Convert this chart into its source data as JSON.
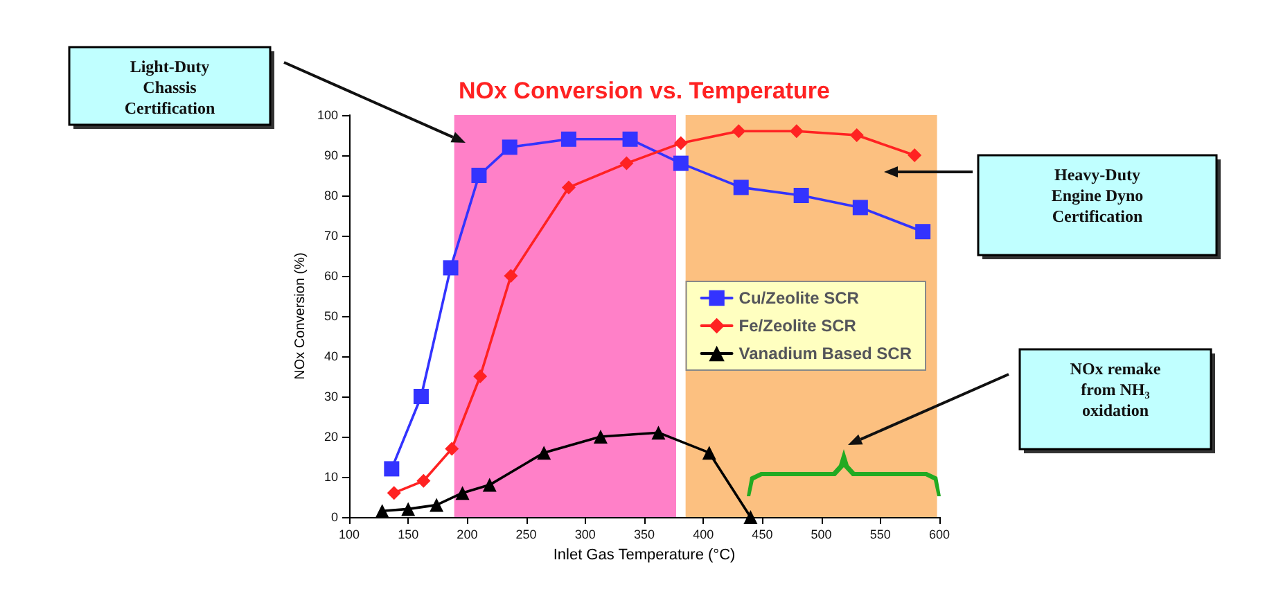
{
  "chart_data": {
    "type": "line",
    "title": "NOx Conversion vs. Temperature",
    "xlabel": "Inlet Gas Temperature (°C)",
    "ylabel": "NOx Conversion (%)",
    "series": [
      {
        "name": "Cu/Zeolite SCR",
        "color": "#3333ff",
        "marker": "square",
        "x": [
          136,
          161,
          186,
          210,
          236,
          286,
          338,
          381,
          432,
          483,
          533,
          586
        ],
        "values": [
          12,
          30,
          62,
          85,
          92,
          94,
          94,
          88,
          82,
          80,
          77,
          71
        ]
      },
      {
        "name": "Fe/Zeolite SCR",
        "color": "#ff2222",
        "marker": "diamond",
        "x": [
          138,
          163,
          187,
          211,
          237,
          286,
          335,
          381,
          430,
          479,
          530,
          579
        ],
        "values": [
          6,
          9,
          17,
          35,
          60,
          82,
          88,
          93,
          96,
          96,
          95,
          90
        ]
      },
      {
        "name": "Vanadium Based SCR",
        "color": "#000000",
        "marker": "triangle",
        "x": [
          128,
          150,
          174,
          196,
          219,
          265,
          313,
          362,
          405,
          440
        ],
        "values": [
          1.5,
          2,
          3,
          6,
          8,
          16,
          20,
          21,
          16,
          0
        ]
      }
    ],
    "xlim": [
      100,
      600
    ],
    "xticks": [
      100,
      150,
      200,
      250,
      300,
      350,
      400,
      450,
      500,
      550,
      600
    ],
    "ylim": [
      0,
      100
    ],
    "yticks": [
      0,
      10,
      20,
      30,
      40,
      50,
      60,
      70,
      80,
      90,
      100
    ],
    "bands": [
      {
        "axis": "x",
        "from": 189,
        "to": 377,
        "color": "#ff80c8"
      },
      {
        "axis": "x",
        "from": 385,
        "to": 598,
        "color": "#fcc080"
      }
    ],
    "annotations": [
      "Light-Duty\nChassis\nCertification",
      "Heavy-Duty\nEngine Dyno\nCertification",
      "NOx remake\nfrom NH₃\noxidation"
    ],
    "grid": false,
    "legend": "right",
    "line_style": "solid"
  }
}
